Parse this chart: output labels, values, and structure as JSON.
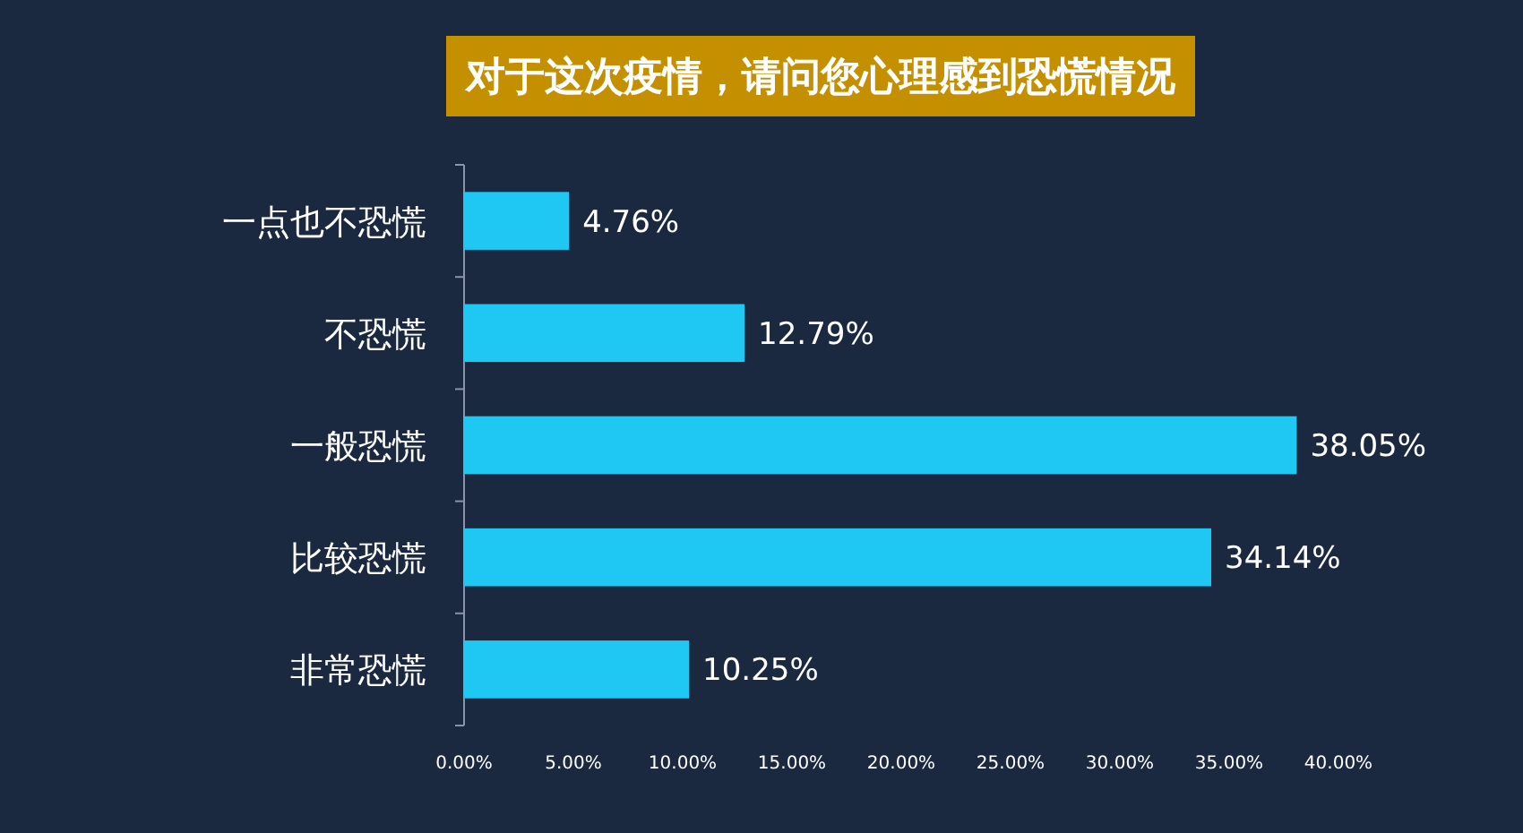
{
  "chart_data": {
    "type": "bar",
    "orientation": "horizontal",
    "title": "对于这次疫情，请问您心理感到恐慌情况",
    "categories": [
      "一点也不恐慌",
      "不恐慌",
      "一般恐慌",
      "比较恐慌",
      "非常恐慌"
    ],
    "values": [
      4.76,
      12.79,
      38.05,
      34.14,
      10.25
    ],
    "value_labels": [
      "4.76%",
      "12.79%",
      "38.05%",
      "34.14%",
      "10.25%"
    ],
    "color": "#1ec8f2",
    "xlim": [
      0,
      40
    ],
    "xticks": [
      {
        "value": 0,
        "label": "0.00%"
      },
      {
        "value": 5,
        "label": "5.00%"
      },
      {
        "value": 10,
        "label": "10.00%"
      },
      {
        "value": 15,
        "label": "15.00%"
      },
      {
        "value": 20,
        "label": "20.00%"
      },
      {
        "value": 25,
        "label": "25.00%"
      },
      {
        "value": 30,
        "label": "30.00%"
      },
      {
        "value": 35,
        "label": "35.00%"
      },
      {
        "value": 40,
        "label": "40.00%"
      }
    ],
    "grid": false
  }
}
